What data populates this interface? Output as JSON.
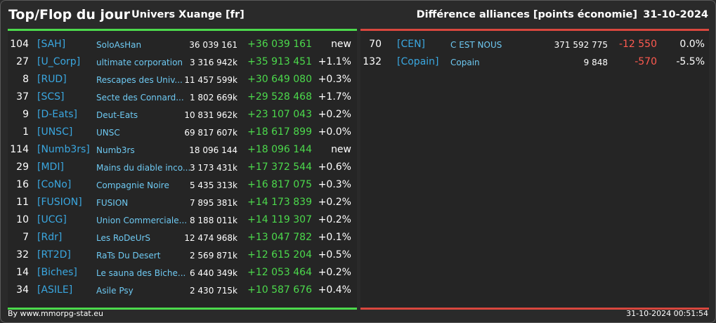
{
  "header": {
    "title": "Top/Flop du jour",
    "subtitle": "Univers Xuange [fr]",
    "right_title": "Différence alliances [points économie]",
    "date": "31-10-2024"
  },
  "top": [
    {
      "rank": "104",
      "tag": "[SAH]",
      "name": "SoloAsHan",
      "points": "36 039 161",
      "diff": "+36 039 161",
      "pct": "new"
    },
    {
      "rank": "27",
      "tag": "[U_Corp]",
      "name": "ultimate corporation",
      "points": "3 316 942k",
      "diff": "+35 913 451",
      "pct": "+1.1%"
    },
    {
      "rank": "8",
      "tag": "[RUD]",
      "name": "Rescapes des Univ...",
      "points": "11 457 599k",
      "diff": "+30 649 080",
      "pct": "+0.3%"
    },
    {
      "rank": "37",
      "tag": "[SCS]",
      "name": "Secte des Connard...",
      "points": "1 802 669k",
      "diff": "+29 528 468",
      "pct": "+1.7%"
    },
    {
      "rank": "9",
      "tag": "[D-Eats]",
      "name": "Deut-Eats",
      "points": "10 831 962k",
      "diff": "+23 107 043",
      "pct": "+0.2%"
    },
    {
      "rank": "1",
      "tag": "[UNSC]",
      "name": "UNSC",
      "points": "69 817 607k",
      "diff": "+18 617 899",
      "pct": "+0.0%"
    },
    {
      "rank": "114",
      "tag": "[Numb3rs]",
      "name": "Numb3rs",
      "points": "18 096 144",
      "diff": "+18 096 144",
      "pct": "new"
    },
    {
      "rank": "29",
      "tag": "[MDI]",
      "name": "Mains du diable inco...",
      "points": "3 173 431k",
      "diff": "+17 372 544",
      "pct": "+0.6%"
    },
    {
      "rank": "16",
      "tag": "[CoNo]",
      "name": "Compagnie Noire",
      "points": "5 435 313k",
      "diff": "+16 817 075",
      "pct": "+0.3%"
    },
    {
      "rank": "11",
      "tag": "[FUSION]",
      "name": "FUSION",
      "points": "7 895 381k",
      "diff": "+14 173 839",
      "pct": "+0.2%"
    },
    {
      "rank": "10",
      "tag": "[UCG]",
      "name": "Union Commerciale...",
      "points": "8 188 011k",
      "diff": "+14 119 307",
      "pct": "+0.2%"
    },
    {
      "rank": "7",
      "tag": "[Rdr]",
      "name": "Les RoDeUrS",
      "points": "12 474 968k",
      "diff": "+13 047 782",
      "pct": "+0.1%"
    },
    {
      "rank": "32",
      "tag": "[RT2D]",
      "name": "RaTs Du Desert",
      "points": "2 569 871k",
      "diff": "+12 615 204",
      "pct": "+0.5%"
    },
    {
      "rank": "14",
      "tag": "[Biches]",
      "name": "Le sauna des Biche...",
      "points": "6 440 349k",
      "diff": "+12 053 464",
      "pct": "+0.2%"
    },
    {
      "rank": "34",
      "tag": "[ASILE]",
      "name": "Asile Psy",
      "points": "2 430 715k",
      "diff": "+10 587 676",
      "pct": "+0.4%"
    }
  ],
  "flop": [
    {
      "rank": "70",
      "tag": "[CEN]",
      "name": "C EST NOUS",
      "points": "371 592 775",
      "diff": "-12 550",
      "pct": "0.0%"
    },
    {
      "rank": "132",
      "tag": "[Copain]",
      "name": "Copain",
      "points": "9 848",
      "diff": "-570",
      "pct": "-5.5%"
    }
  ],
  "footer": {
    "credit": "By www.mmorpg-stat.eu",
    "timestamp": "31-10-2024 00:51:54"
  },
  "colors": {
    "positive": "#4cd94c",
    "negative": "#ff5a50",
    "tag": "#3aa7e0",
    "name": "#6ec9f2"
  }
}
